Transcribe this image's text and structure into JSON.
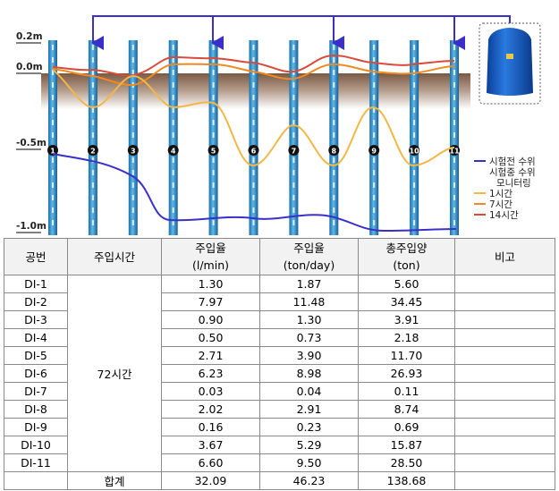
{
  "diagram": {
    "depth_labels": [
      "0.2m",
      "0.0m",
      "-0.5m",
      "-1.0m"
    ],
    "well_numbers": [
      "1",
      "2",
      "3",
      "4",
      "5",
      "6",
      "7",
      "8",
      "9",
      "10",
      "11"
    ],
    "legend": {
      "before": "시험전 수위",
      "during_1": "시험중 수위",
      "during_2": "모니터링",
      "h1": "1시간",
      "h7": "7시간",
      "h14": "14시간"
    }
  },
  "table": {
    "headers": [
      {
        "name": "공번"
      },
      {
        "name": "주입시간"
      },
      {
        "name": "주입율",
        "unit": "(l/min)"
      },
      {
        "name": "주입율",
        "unit": "(ton/day)"
      },
      {
        "name": "총주입양",
        "unit": "(ton)"
      },
      {
        "name": "비고"
      }
    ],
    "time": "72시간",
    "rows": [
      [
        "DI-1",
        "1.30",
        "1.87",
        "5.60"
      ],
      [
        "DI-2",
        "7.97",
        "11.48",
        "34.45"
      ],
      [
        "DI-3",
        "0.90",
        "1.30",
        "3.91"
      ],
      [
        "DI-4",
        "0.50",
        "0.73",
        "2.18"
      ],
      [
        "DI-5",
        "2.71",
        "3.90",
        "11.70"
      ],
      [
        "DI-6",
        "6.23",
        "8.98",
        "26.93"
      ],
      [
        "DI-7",
        "0.03",
        "0.04",
        "0.11"
      ],
      [
        "DI-8",
        "2.02",
        "2.91",
        "8.74"
      ],
      [
        "DI-9",
        "0.16",
        "0.23",
        "0.69"
      ],
      [
        "DI-10",
        "3.67",
        "5.29",
        "15.87"
      ],
      [
        "DI-11",
        "6.60",
        "9.50",
        "28.50"
      ]
    ],
    "total": {
      "label": "합계",
      "values": [
        "32.09",
        "46.23",
        "138.68"
      ]
    }
  }
}
